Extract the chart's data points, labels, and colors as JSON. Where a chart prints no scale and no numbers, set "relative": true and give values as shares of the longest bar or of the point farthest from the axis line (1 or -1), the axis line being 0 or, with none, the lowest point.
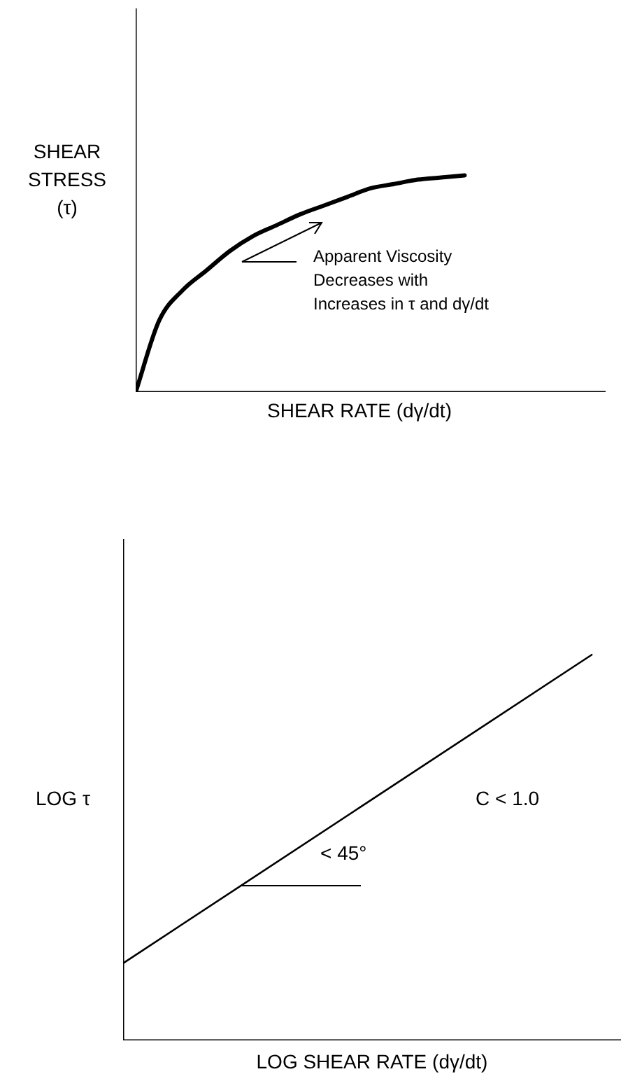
{
  "chart_data": [
    {
      "type": "line",
      "relative": true,
      "xlabel": "SHEAR RATE (dγ/dt)",
      "ylabel": "SHEAR\nSTRESS\n(τ)",
      "categories": [
        null,
        null,
        null,
        null,
        null,
        null,
        null,
        null,
        null,
        null,
        null,
        null,
        null,
        null,
        null,
        null,
        null,
        null,
        null,
        null,
        null
      ],
      "series": [
        {
          "color": "#000000",
          "values": [
            0,
            0.33,
            0.47,
            0.56,
            0.65,
            0.72,
            0.77,
            0.82,
            0.86,
            0.9,
            0.94,
            0.96,
            0.98,
            0.99,
            1,
            null,
            null,
            null,
            null,
            null,
            null
          ]
        }
      ],
      "annotations": [
        "Apparent Viscosity\nDecreases with\nIncreases in τ and dγ/dt"
      ],
      "legend": false,
      "marker": "none"
    },
    {
      "type": "line",
      "relative": true,
      "xlabel": "LOG SHEAR RATE (dγ/dt)",
      "ylabel": "LOG τ",
      "categories": [
        null,
        null,
        null,
        null,
        null,
        null,
        null,
        null,
        null,
        null,
        null,
        null,
        null,
        null,
        null,
        null,
        null,
        null
      ],
      "series": [
        {
          "color": "#000000",
          "values": [
            0.2,
            null,
            null,
            null,
            null,
            null,
            null,
            null,
            null,
            null,
            null,
            null,
            null,
            null,
            null,
            null,
            1,
            null
          ]
        }
      ],
      "annotations": [
        "< 45°",
        "C < 1.0"
      ],
      "legend": false,
      "marker": "none"
    }
  ]
}
